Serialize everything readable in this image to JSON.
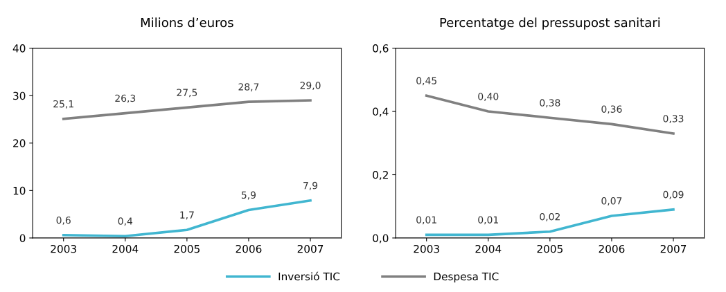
{
  "chart_data": [
    {
      "type": "line",
      "title": "Milions d’euros",
      "categories": [
        "2003",
        "2004",
        "2005",
        "2006",
        "2007"
      ],
      "ylim": [
        0,
        40
      ],
      "yticks": [
        0,
        10,
        20,
        30,
        40
      ],
      "grid": false,
      "legend": "bottom",
      "series": [
        {
          "name": "Inversió TIC",
          "color": "#41b6d0",
          "values": [
            0.6,
            0.4,
            1.7,
            5.9,
            7.9
          ],
          "value_labels": [
            "0,6",
            "0,4",
            "1,7",
            "5,9",
            "7,9"
          ]
        },
        {
          "name": "Despesa TIC",
          "color": "#808080",
          "values": [
            25.1,
            26.3,
            27.5,
            28.7,
            29.0
          ],
          "value_labels": [
            "25,1",
            "26,3",
            "27,5",
            "28,7",
            "29,0"
          ]
        }
      ]
    },
    {
      "type": "line",
      "title": "Percentatge del pressupost sanitari",
      "categories": [
        "2003",
        "2004",
        "2005",
        "2006",
        "2007"
      ],
      "ylim": [
        0,
        0.6
      ],
      "yticks": [
        {
          "value": 0,
          "label": "0,0"
        },
        {
          "value": 0.2,
          "label": "0,2"
        },
        {
          "value": 0.4,
          "label": "0,4"
        },
        {
          "value": 0.6,
          "label": "0,6"
        }
      ],
      "grid": false,
      "legend": "bottom",
      "series": [
        {
          "name": "Inversió TIC",
          "color": "#41b6d0",
          "values": [
            0.01,
            0.01,
            0.02,
            0.07,
            0.09
          ],
          "value_labels": [
            "0,01",
            "0,01",
            "0,02",
            "0,07",
            "0,09"
          ]
        },
        {
          "name": "Despesa TIC",
          "color": "#808080",
          "values": [
            0.45,
            0.4,
            0.38,
            0.36,
            0.33
          ],
          "value_labels": [
            "0,45",
            "0,40",
            "0,38",
            "0,36",
            "0,33"
          ]
        }
      ]
    }
  ]
}
